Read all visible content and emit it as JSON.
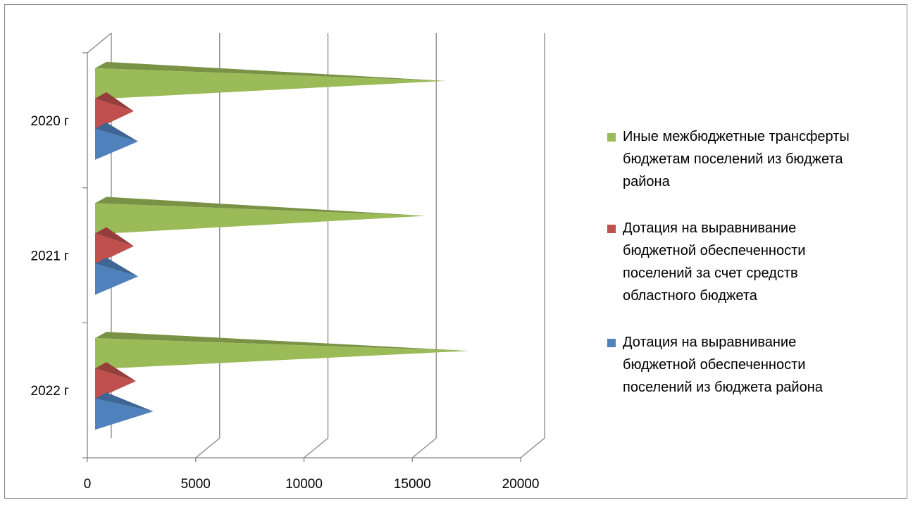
{
  "chart_data": {
    "type": "bar",
    "orientation": "horizontal",
    "style": "3d-cone",
    "categories": [
      "2020 г",
      "2021 г",
      "2022 г"
    ],
    "series": [
      {
        "name": "Иные межбюджетные трансферты бюджетам поселений из бюджета района",
        "color": "#9bbb59",
        "values": [
          16100,
          15200,
          17200
        ]
      },
      {
        "name": "Дотация на выравнивание бюджетной обеспеченности поселений за счет средств областного бюджета",
        "color": "#c0504d",
        "values": [
          1700,
          1700,
          1800
        ]
      },
      {
        "name": "Дотация на выравнивание бюджетной обеспеченности поселений из бюджета района",
        "color": "#4f81bd",
        "values": [
          1900,
          1900,
          2600
        ]
      }
    ],
    "x_ticks": [
      "0",
      "5000",
      "10000",
      "15000",
      "20000"
    ],
    "xlim": [
      0,
      20000
    ],
    "grid": true,
    "legend_position": "right"
  },
  "legend": {
    "items": [
      {
        "lines": [
          "Иные межбюджетные трансферты",
          "бюджетам поселений из бюджета",
          "района"
        ],
        "color": "#9bbb59"
      },
      {
        "lines": [
          "Дотация на выравнивание",
          "бюджетной обеспеченности",
          "поселений за счет средств",
          "областного бюджета"
        ],
        "color": "#c0504d"
      },
      {
        "lines": [
          "Дотация на выравнивание",
          "бюджетной обеспеченности",
          "поселений из бюджета района"
        ],
        "color": "#4f81bd"
      }
    ]
  }
}
